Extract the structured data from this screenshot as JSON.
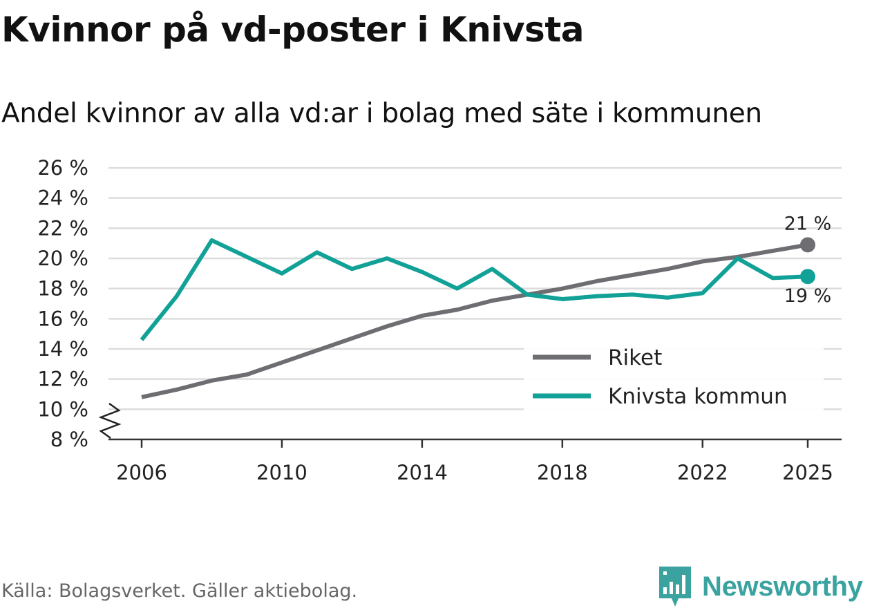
{
  "chart_data": {
    "type": "line",
    "title": "Kvinnor på vd-poster i Knivsta",
    "subtitle": "Andel kvinnor av alla vd:ar i bolag med säte i kommunen",
    "x": [
      2006,
      2007,
      2008,
      2009,
      2010,
      2011,
      2012,
      2013,
      2014,
      2015,
      2016,
      2017,
      2018,
      2019,
      2020,
      2021,
      2022,
      2023,
      2024,
      2025
    ],
    "series": [
      {
        "name": "Riket",
        "color": "#6e6d72",
        "values": [
          10.8,
          11.3,
          11.9,
          12.3,
          13.1,
          13.9,
          14.7,
          15.5,
          16.2,
          16.6,
          17.2,
          17.6,
          18.0,
          18.5,
          18.9,
          19.3,
          19.8,
          20.1,
          20.5,
          20.9
        ],
        "end_label": "21 %"
      },
      {
        "name": "Knivsta kommun",
        "color": "#12a197",
        "values": [
          14.6,
          17.5,
          21.2,
          20.1,
          19.0,
          20.4,
          19.3,
          20.0,
          19.1,
          18.0,
          19.3,
          17.6,
          17.3,
          17.5,
          17.6,
          17.4,
          17.7,
          20.0,
          18.7,
          18.8
        ],
        "end_label": "19 %"
      }
    ],
    "y_ticks": [
      "8 %",
      "10 %",
      "12 %",
      "14 %",
      "16 %",
      "18 %",
      "20 %",
      "22 %",
      "24 %",
      "26 %"
    ],
    "y_tick_values": [
      8,
      10,
      12,
      14,
      16,
      18,
      20,
      22,
      24,
      26
    ],
    "x_ticks": [
      "2006",
      "2010",
      "2014",
      "2018",
      "2022",
      "2025"
    ],
    "x_tick_values": [
      2006,
      2010,
      2014,
      2018,
      2022,
      2025
    ],
    "ylim": [
      8,
      26
    ],
    "xlim": [
      2006,
      2025
    ],
    "axis_break": true,
    "grid": true,
    "legend_position": "lower-right"
  },
  "footer": {
    "source": "Källa: Bolagsverket. Gäller aktiebolag.",
    "brand": "Newsworthy",
    "brand_color": "#3aa3a0"
  }
}
